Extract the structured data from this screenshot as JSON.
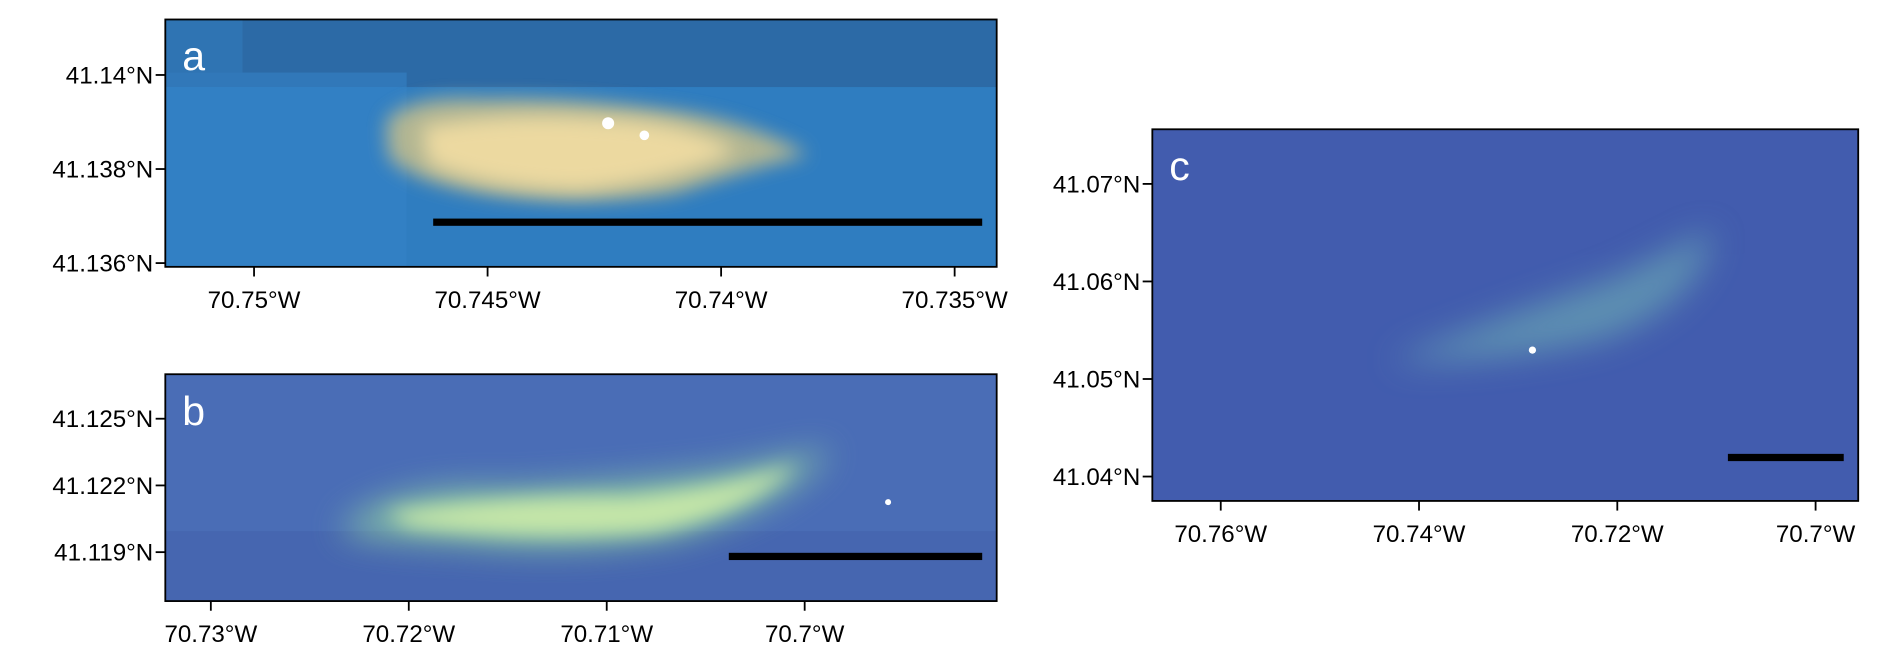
{
  "panels": [
    {
      "label": "a",
      "xlim": [
        70.7519,
        70.7341
      ],
      "ylim": [
        41.13592,
        41.14118
      ],
      "xticks": [
        {
          "value": 70.75,
          "label": "70.75°W"
        },
        {
          "value": 70.745,
          "label": "70.745°W"
        },
        {
          "value": 70.74,
          "label": "70.74°W"
        },
        {
          "value": 70.735,
          "label": "70.735°W"
        }
      ],
      "yticks": [
        {
          "value": 41.136,
          "label": "41.136°N"
        },
        {
          "value": 41.138,
          "label": "41.138°N"
        },
        {
          "value": 41.14,
          "label": "41.14°N"
        }
      ]
    },
    {
      "label": "b",
      "xlim": [
        70.7323,
        70.6903
      ],
      "ylim": [
        41.1168,
        41.127
      ],
      "xticks": [
        {
          "value": 70.73,
          "label": "70.73°W"
        },
        {
          "value": 70.72,
          "label": "70.72°W"
        },
        {
          "value": 70.71,
          "label": "70.71°W"
        },
        {
          "value": 70.7,
          "label": "70.7°W"
        }
      ],
      "yticks": [
        {
          "value": 41.119,
          "label": "41.119°N"
        },
        {
          "value": 41.122,
          "label": "41.122°N"
        },
        {
          "value": 41.125,
          "label": "41.125°N"
        }
      ]
    },
    {
      "label": "c",
      "xlim": [
        70.7669,
        70.6957
      ],
      "ylim": [
        41.0375,
        41.0756
      ],
      "xticks": [
        {
          "value": 70.76,
          "label": "70.76°W"
        },
        {
          "value": 70.74,
          "label": "70.74°W"
        },
        {
          "value": 70.72,
          "label": "70.72°W"
        },
        {
          "value": 70.7,
          "label": "70.7°W"
        }
      ],
      "yticks": [
        {
          "value": 41.04,
          "label": "41.04°N"
        },
        {
          "value": 41.05,
          "label": "41.05°N"
        },
        {
          "value": 41.06,
          "label": "41.06°N"
        },
        {
          "value": 41.07,
          "label": "41.07°N"
        }
      ]
    }
  ]
}
